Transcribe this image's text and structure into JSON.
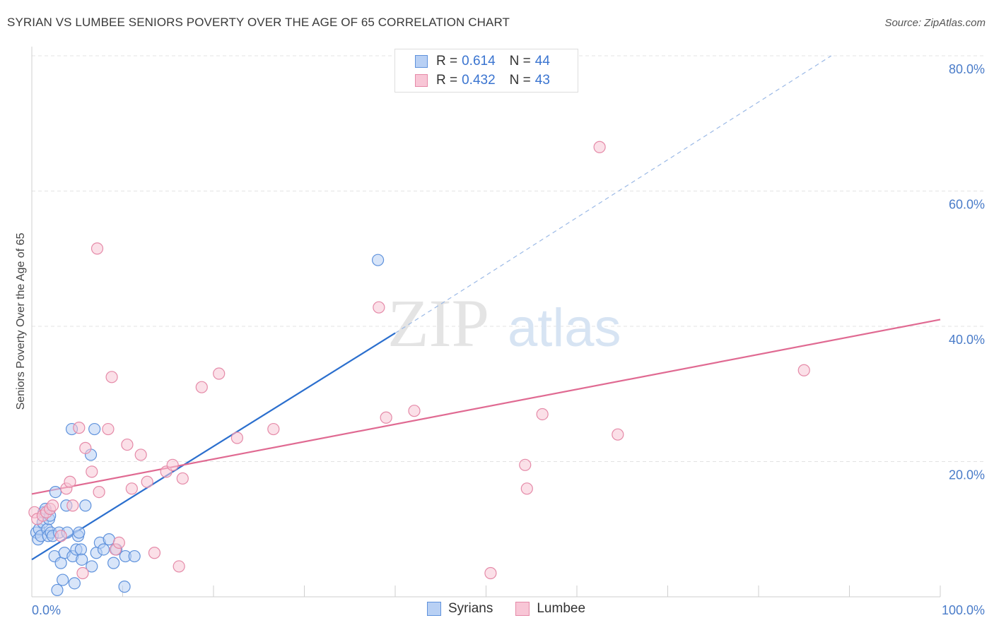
{
  "title": "SYRIAN VS LUMBEE SENIORS POVERTY OVER THE AGE OF 65 CORRELATION CHART",
  "source": "Source: ZipAtlas.com",
  "watermark": {
    "zip": "ZIP",
    "atlas": "atlas"
  },
  "legend": {
    "r_label": "R =",
    "n_label": "N =",
    "rows": [
      {
        "name": "Syrians",
        "r": "0.614",
        "n": "44"
      },
      {
        "name": "Lumbee",
        "r": "0.432",
        "n": "43"
      }
    ]
  },
  "chart_data": {
    "type": "scatter",
    "title": "SYRIAN VS LUMBEE SENIORS POVERTY OVER THE AGE OF 65 CORRELATION CHART",
    "xlabel": "",
    "ylabel": "Seniors Poverty Over the Age of 65",
    "xlim": [
      0,
      100
    ],
    "ylim": [
      0,
      80
    ],
    "x_ticks": [
      {
        "value": 0,
        "label": "0.0%"
      },
      {
        "value": 100,
        "label": "100.0%"
      }
    ],
    "y_ticks": [
      {
        "value": 20,
        "label": "20.0%"
      },
      {
        "value": 40,
        "label": "40.0%"
      },
      {
        "value": 60,
        "label": "60.0%"
      },
      {
        "value": 80,
        "label": "80.0%"
      }
    ],
    "grid": true,
    "legend_position": "top-center",
    "colors": {
      "syrians_fill": "#b8d0f4",
      "syrians_stroke": "#5f92dc",
      "syrians_line": "#2b6fce",
      "lumbee_fill": "#f8c6d6",
      "lumbee_stroke": "#e58aa8",
      "lumbee_line": "#e06a92"
    },
    "series": [
      {
        "name": "Syrians",
        "points": [
          [
            0.5,
            9.5
          ],
          [
            0.7,
            8.5
          ],
          [
            0.8,
            10.0
          ],
          [
            1.0,
            9.0
          ],
          [
            1.2,
            11.0
          ],
          [
            1.3,
            12.5
          ],
          [
            1.5,
            13.0
          ],
          [
            1.7,
            10.0
          ],
          [
            1.8,
            9.0
          ],
          [
            1.9,
            11.5
          ],
          [
            2.1,
            9.5
          ],
          [
            2.3,
            9.0
          ],
          [
            2.5,
            6.0
          ],
          [
            2.6,
            15.5
          ],
          [
            2.8,
            1.0
          ],
          [
            3.0,
            9.5
          ],
          [
            3.2,
            5.0
          ],
          [
            3.4,
            2.5
          ],
          [
            3.6,
            6.5
          ],
          [
            3.8,
            13.5
          ],
          [
            3.9,
            9.5
          ],
          [
            4.4,
            24.8
          ],
          [
            4.5,
            6.0
          ],
          [
            4.7,
            2.0
          ],
          [
            4.9,
            7.0
          ],
          [
            5.1,
            9.0
          ],
          [
            5.2,
            9.5
          ],
          [
            5.4,
            7.0
          ],
          [
            5.5,
            5.5
          ],
          [
            5.9,
            13.5
          ],
          [
            6.5,
            21.0
          ],
          [
            6.6,
            4.5
          ],
          [
            6.9,
            24.8
          ],
          [
            7.1,
            6.5
          ],
          [
            7.5,
            8.0
          ],
          [
            7.9,
            7.0
          ],
          [
            8.5,
            8.5
          ],
          [
            9.0,
            5.0
          ],
          [
            9.3,
            7.0
          ],
          [
            10.2,
            1.5
          ],
          [
            10.3,
            6.0
          ],
          [
            11.3,
            6.0
          ],
          [
            38.1,
            49.8
          ],
          [
            2.0,
            12.0
          ]
        ],
        "trend": {
          "x0": 0,
          "y0": 5.5,
          "x1": 40,
          "y1": 39.0,
          "dashed_to": {
            "x": 88,
            "y": 80
          }
        }
      },
      {
        "name": "Lumbee",
        "points": [
          [
            0.3,
            12.5
          ],
          [
            0.6,
            11.5
          ],
          [
            1.2,
            12.0
          ],
          [
            1.6,
            12.5
          ],
          [
            2.0,
            13.0
          ],
          [
            2.3,
            13.5
          ],
          [
            3.2,
            9.0
          ],
          [
            3.8,
            16.0
          ],
          [
            4.2,
            17.0
          ],
          [
            4.5,
            13.5
          ],
          [
            5.2,
            25.0
          ],
          [
            5.6,
            3.5
          ],
          [
            5.9,
            22.0
          ],
          [
            6.6,
            18.5
          ],
          [
            7.2,
            51.5
          ],
          [
            7.4,
            15.5
          ],
          [
            8.4,
            24.8
          ],
          [
            8.8,
            32.5
          ],
          [
            9.2,
            7.0
          ],
          [
            9.6,
            8.0
          ],
          [
            10.5,
            22.5
          ],
          [
            11.0,
            16.0
          ],
          [
            12.0,
            21.0
          ],
          [
            12.7,
            17.0
          ],
          [
            13.5,
            6.5
          ],
          [
            14.8,
            18.5
          ],
          [
            15.5,
            19.5
          ],
          [
            16.2,
            4.5
          ],
          [
            16.6,
            17.5
          ],
          [
            18.7,
            31.0
          ],
          [
            20.6,
            33.0
          ],
          [
            22.6,
            23.5
          ],
          [
            26.6,
            24.8
          ],
          [
            38.2,
            42.8
          ],
          [
            39.0,
            26.5
          ],
          [
            42.1,
            27.5
          ],
          [
            50.5,
            3.5
          ],
          [
            54.3,
            19.5
          ],
          [
            54.5,
            16.0
          ],
          [
            56.2,
            27.0
          ],
          [
            62.5,
            66.5
          ],
          [
            64.5,
            24.0
          ],
          [
            85.0,
            33.5
          ]
        ],
        "trend": {
          "x0": 0,
          "y0": 15.2,
          "x1": 100,
          "y1": 41.0
        }
      }
    ]
  }
}
